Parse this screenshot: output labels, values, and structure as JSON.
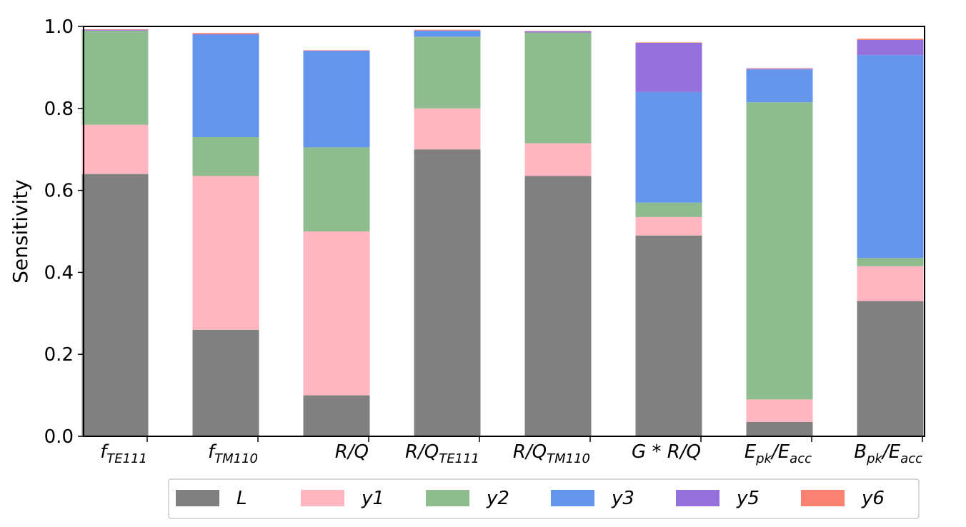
{
  "chart_data": {
    "type": "bar",
    "stacked": true,
    "ylabel": "Sensitivity",
    "xlabel": "",
    "ylim": [
      0,
      1.0
    ],
    "yticks": [
      "0.0",
      "0.2",
      "0.4",
      "0.6",
      "0.8",
      "1.0"
    ],
    "grid": false,
    "legend_position": "bottom",
    "categories": [
      {
        "base": "f",
        "sub": "TE111"
      },
      {
        "base": "f",
        "sub": "TM110"
      },
      {
        "base": "R/Q",
        "sub": ""
      },
      {
        "base": "R/Q",
        "sub": "TE111"
      },
      {
        "base": "R/Q",
        "sub": "TM110"
      },
      {
        "base": "G * R/Q",
        "sub": ""
      },
      {
        "base": "E",
        "sub": "pk",
        "tail": "/E",
        "tail_sub": "acc"
      },
      {
        "base": "B",
        "sub": "pk",
        "tail": "/E",
        "tail_sub": "acc"
      }
    ],
    "series": [
      {
        "name": "L",
        "color": "#808080",
        "values": [
          0.64,
          0.26,
          0.1,
          0.7,
          0.635,
          0.49,
          0.035,
          0.33
        ]
      },
      {
        "name": "y1",
        "color": "#ffb6c1",
        "values": [
          0.12,
          0.375,
          0.4,
          0.1,
          0.08,
          0.045,
          0.055,
          0.085
        ]
      },
      {
        "name": "y2",
        "color": "#8fbc8f",
        "values": [
          0.23,
          0.095,
          0.205,
          0.175,
          0.27,
          0.035,
          0.725,
          0.02
        ]
      },
      {
        "name": "y3",
        "color": "#6495ed",
        "values": [
          0.0,
          0.25,
          0.235,
          0.015,
          0.0,
          0.27,
          0.08,
          0.495
        ]
      },
      {
        "name": "y5",
        "color": "#9370db",
        "values": [
          0.002,
          0.001,
          0.001,
          0.0,
          0.003,
          0.12,
          0.002,
          0.037
        ]
      },
      {
        "name": "y6",
        "color": "#fa8072",
        "values": [
          0.001,
          0.003,
          0.001,
          0.002,
          0.001,
          0.001,
          0.001,
          0.003
        ]
      }
    ]
  }
}
